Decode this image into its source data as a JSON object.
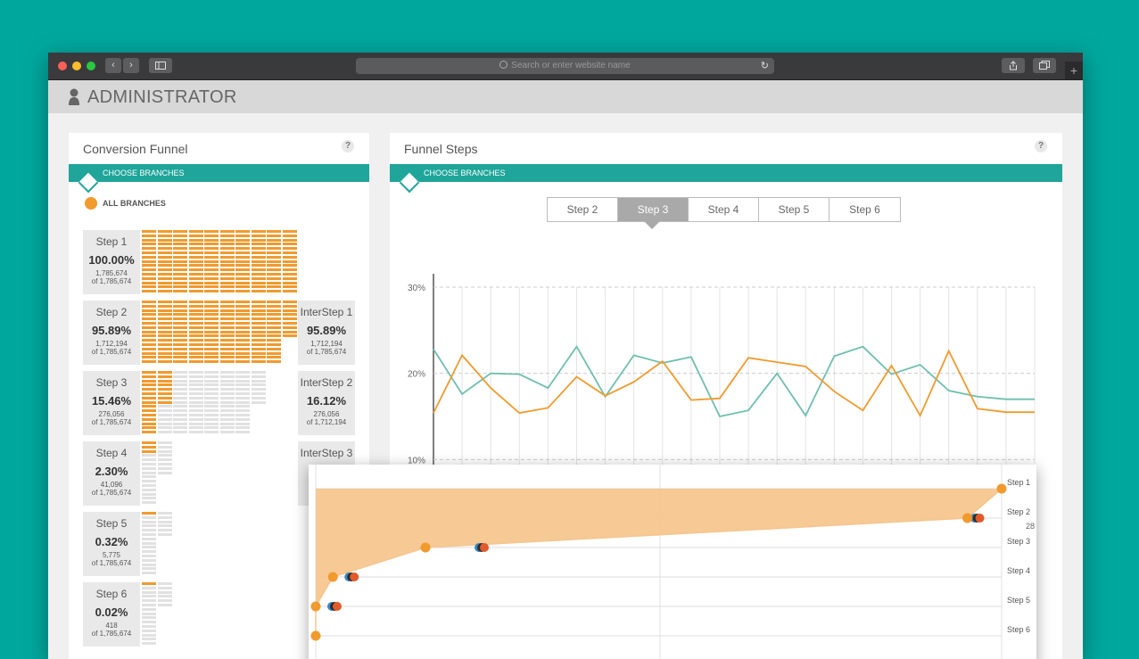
{
  "browser": {
    "url_placeholder": "Search or enter website name",
    "back_glyph": "‹",
    "forward_glyph": "›",
    "reload_glyph": "↻",
    "plus_glyph": "+"
  },
  "app": {
    "title": "ADMINISTRATOR"
  },
  "funnel": {
    "title": "Conversion Funnel",
    "help": "?",
    "choose_branches": "CHOOSE BRANCHES",
    "all_branches": "ALL BRANCHES",
    "accent": "#f19a2e",
    "steps": [
      {
        "name": "Step 1",
        "percent": "100.00%",
        "count": "1,785,674",
        "of": "of 1,785,674",
        "fill": 1.0
      },
      {
        "name": "Step 2",
        "percent": "95.89%",
        "count": "1,712,194",
        "of": "of 1,785,674",
        "fill": 0.9589
      },
      {
        "name": "Step 3",
        "percent": "15.46%",
        "count": "276,056",
        "of": "of 1,785,674",
        "fill": 0.1546
      },
      {
        "name": "Step 4",
        "percent": "2.30%",
        "count": "41,096",
        "of": "of 1,785,674",
        "fill": 0.023
      },
      {
        "name": "Step 5",
        "percent": "0.32%",
        "count": "5,775",
        "of": "of 1,785,674",
        "fill": 0.0032
      },
      {
        "name": "Step 6",
        "percent": "0.02%",
        "count": "418",
        "of": "of 1,785,674",
        "fill": 0.0002
      }
    ],
    "intersteps": [
      {
        "name": "InterStep 1",
        "percent": "95.89%",
        "count": "1,712,194",
        "of": "of 1,785,674"
      },
      {
        "name": "InterStep 2",
        "percent": "16.12%",
        "count": "276,056",
        "of": "of 1,712,194"
      },
      {
        "name": "InterStep 3"
      }
    ]
  },
  "funnel_steps": {
    "title": "Funnel Steps",
    "help": "?",
    "choose_branches": "CHOOSE BRANCHES",
    "tabs": [
      "Step 2",
      "Step 3",
      "Step 4",
      "Step 5",
      "Step 6"
    ],
    "active_tab": 1
  },
  "chart_data": [
    {
      "type": "line",
      "ylim": [
        0,
        30
      ],
      "yticks": [
        "30%",
        "20%",
        "10%"
      ],
      "grid": true,
      "x": [
        1,
        2,
        3,
        4,
        5,
        6,
        7,
        8,
        9,
        10,
        11,
        12,
        13,
        14,
        15,
        16,
        17,
        18,
        19,
        20,
        21,
        22
      ],
      "series": [
        {
          "color": "#6fbfae",
          "values": [
            22.8,
            17.6,
            20.0,
            19.9,
            18.3,
            23.1,
            17.3,
            22.1,
            21.2,
            21.9,
            15.0,
            15.7,
            20.0,
            15.1,
            22.0,
            23.1,
            19.9,
            21.0,
            18.0,
            17.3,
            17.0,
            17.0
          ]
        },
        {
          "color": "#f19a2e",
          "values": [
            15.4,
            22.1,
            18.3,
            15.4,
            16.0,
            19.6,
            17.4,
            19.0,
            21.4,
            16.9,
            17.1,
            21.8,
            21.3,
            20.8,
            17.9,
            15.7,
            20.9,
            15.1,
            22.6,
            15.9,
            15.5,
            15.5
          ]
        }
      ]
    },
    {
      "type": "area",
      "categories": [
        "Step 1",
        "Step 2",
        "Step 3",
        "Step 4",
        "Step 5",
        "Step 6"
      ],
      "edge_label": "28",
      "area_color": "#f5c68f",
      "point_colors": [
        "#f19a2e",
        "#3b87c4",
        "#2b2b2b",
        "#e05a2b"
      ],
      "orange_path": [
        [
          0.0,
          6
        ],
        [
          0.0,
          5
        ],
        [
          0.025,
          4
        ],
        [
          0.16,
          3
        ],
        [
          0.95,
          2
        ],
        [
          1.0,
          1
        ]
      ]
    }
  ]
}
